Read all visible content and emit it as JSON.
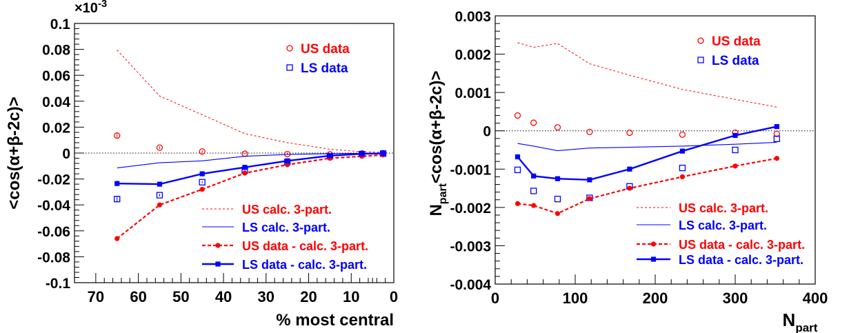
{
  "chart_data": [
    {
      "type": "line",
      "xlabel": "% most central",
      "ylabel": "<cos(α+β-2c)>",
      "exponent_label": "×10",
      "exponent_power": "-3",
      "xlim": [
        75,
        0
      ],
      "ylim": [
        -0.1,
        0.1
      ],
      "x_reversed": true,
      "x_ticks": [
        70,
        60,
        50,
        40,
        30,
        20,
        10,
        0
      ],
      "y_ticks": [
        -0.1,
        -0.08,
        -0.06,
        -0.04,
        -0.02,
        0,
        0.02,
        0.04,
        0.06,
        0.08,
        0.1
      ],
      "y_tick_labels": [
        "-0.1",
        "-0.08",
        "-0.06",
        "-0.04",
        "-0.02",
        "0",
        "0.02",
        "0.04",
        "0.06",
        "0.08",
        "0.1"
      ],
      "reference_line": 0,
      "legend_top": [
        "US data",
        "LS data"
      ],
      "legend_bottom": [
        "US calc. 3-part.",
        "LS calc. 3-part.",
        "US data - calc. 3-part.",
        "LS data - calc. 3-part."
      ],
      "series": [
        {
          "name": "US data",
          "style": "open-circle",
          "color": "#ff0000",
          "x": [
            65,
            55,
            45,
            35,
            25,
            15,
            7.5,
            2.5
          ],
          "y": [
            0.0135,
            0.0042,
            0.0012,
            -0.0005,
            -0.0008,
            -0.001,
            -0.0003,
            -0.0001
          ],
          "err": [
            0.002,
            0.001,
            0.0008,
            0.0006,
            0.0005,
            0.0004,
            0.0004,
            0.0004
          ]
        },
        {
          "name": "LS data",
          "style": "open-square",
          "color": "#0000ff",
          "x": [
            65,
            55,
            45,
            35,
            25,
            15,
            7.5,
            2.5
          ],
          "y": [
            -0.0355,
            -0.0325,
            -0.0225,
            -0.0135,
            -0.007,
            -0.0025,
            -0.0008,
            -0.0004
          ],
          "err": [
            0.002,
            0.001,
            0.0008,
            0.0006,
            0.0005,
            0.0004,
            0.0004,
            0.0004
          ]
        },
        {
          "name": "US calc. 3-part.",
          "style": "dashed-thin",
          "color": "#ff0000",
          "x": [
            65,
            55,
            45,
            35,
            25,
            15,
            7.5,
            2.5
          ],
          "y": [
            0.0795,
            0.044,
            0.0295,
            0.015,
            0.008,
            0.003,
            0.001,
            0.0005
          ]
        },
        {
          "name": "LS calc. 3-part.",
          "style": "solid-thin",
          "color": "#0000ff",
          "x": [
            65,
            55,
            45,
            35,
            25,
            15,
            7.5,
            2.5
          ],
          "y": [
            -0.0115,
            -0.0075,
            -0.006,
            -0.0025,
            -0.001,
            -0.0005,
            -0.0002,
            -0.0001
          ]
        },
        {
          "name": "US data - calc. 3-part.",
          "style": "dashed-dot",
          "color": "#ff0000",
          "x": [
            65,
            55,
            45,
            35,
            25,
            15,
            7.5,
            2.5
          ],
          "y": [
            -0.066,
            -0.04,
            -0.028,
            -0.0155,
            -0.009,
            -0.004,
            -0.0025,
            -0.0015
          ],
          "err": [
            0.002,
            0.001,
            0.0008,
            0.0006,
            0.0005,
            0.0004,
            0.0004,
            0.0004
          ]
        },
        {
          "name": "LS data - calc. 3-part.",
          "style": "solid-square",
          "color": "#0000ff",
          "x": [
            65,
            55,
            45,
            35,
            25,
            15,
            7.5,
            2.5
          ],
          "y": [
            -0.0235,
            -0.024,
            -0.016,
            -0.011,
            -0.006,
            -0.002,
            -0.0006,
            -0.0003
          ],
          "err": [
            0.002,
            0.001,
            0.0008,
            0.0006,
            0.0005,
            0.0004,
            0.0004,
            0.0004
          ]
        }
      ]
    },
    {
      "type": "line",
      "xlabel": "N",
      "xlabel_sub": "part",
      "ylabel_prefix": "N",
      "ylabel_sub": "part",
      "ylabel": "<cos(α+β-2c)>",
      "xlim": [
        0,
        400
      ],
      "ylim": [
        -0.004,
        0.003
      ],
      "x_ticks": [
        0,
        100,
        200,
        300,
        400
      ],
      "y_ticks": [
        -0.004,
        -0.003,
        -0.002,
        -0.001,
        0,
        0.001,
        0.002,
        0.003
      ],
      "y_tick_labels": [
        "-0.004",
        "-0.003",
        "-0.002",
        "-0.001",
        "0",
        "0.001",
        "0.002",
        "0.003"
      ],
      "reference_line": 0,
      "legend_top": [
        "US data",
        "LS data"
      ],
      "legend_bottom": [
        "US calc. 3-part.",
        "LS calc. 3-part.",
        "US data - calc. 3-part.",
        "LS data - calc. 3-part."
      ],
      "series": [
        {
          "name": "US data",
          "style": "open-circle",
          "color": "#ff0000",
          "x": [
            28,
            48,
            78,
            118,
            168,
            234,
            300,
            352
          ],
          "y": [
            0.0004,
            0.00021,
            9e-05,
            -3e-05,
            -5e-05,
            -0.0001,
            -5e-05,
            -8e-05
          ]
        },
        {
          "name": "LS data",
          "style": "open-square",
          "color": "#0000ff",
          "x": [
            28,
            48,
            78,
            118,
            168,
            234,
            300,
            352
          ],
          "y": [
            -0.00102,
            -0.00157,
            -0.00178,
            -0.00175,
            -0.00145,
            -0.00097,
            -0.0005,
            -0.00021
          ]
        },
        {
          "name": "US calc. 3-part.",
          "style": "dashed-thin",
          "color": "#ff0000",
          "x": [
            28,
            48,
            78,
            118,
            168,
            234,
            300,
            352
          ],
          "y": [
            0.0023,
            0.00218,
            0.00228,
            0.00175,
            0.00145,
            0.00108,
            0.00082,
            0.00062
          ]
        },
        {
          "name": "LS calc. 3-part.",
          "style": "solid-thin",
          "color": "#0000ff",
          "x": [
            28,
            48,
            78,
            118,
            168,
            234,
            300,
            352
          ],
          "y": [
            -0.00033,
            -0.0004,
            -0.00052,
            -0.00045,
            -0.00043,
            -0.0004,
            -0.00035,
            -0.0003
          ]
        },
        {
          "name": "US data - calc. 3-part.",
          "style": "dashed-dot",
          "color": "#ff0000",
          "x": [
            28,
            48,
            78,
            118,
            168,
            234,
            300,
            352
          ],
          "y": [
            -0.0019,
            -0.00195,
            -0.00216,
            -0.00177,
            -0.0015,
            -0.0012,
            -0.00092,
            -0.00072
          ]
        },
        {
          "name": "LS data - calc. 3-part.",
          "style": "solid-square",
          "color": "#0000ff",
          "x": [
            28,
            48,
            78,
            118,
            168,
            234,
            300,
            352
          ],
          "y": [
            -0.00068,
            -0.00118,
            -0.00125,
            -0.00128,
            -0.001,
            -0.00053,
            -0.00012,
            0.00011
          ]
        }
      ]
    }
  ]
}
